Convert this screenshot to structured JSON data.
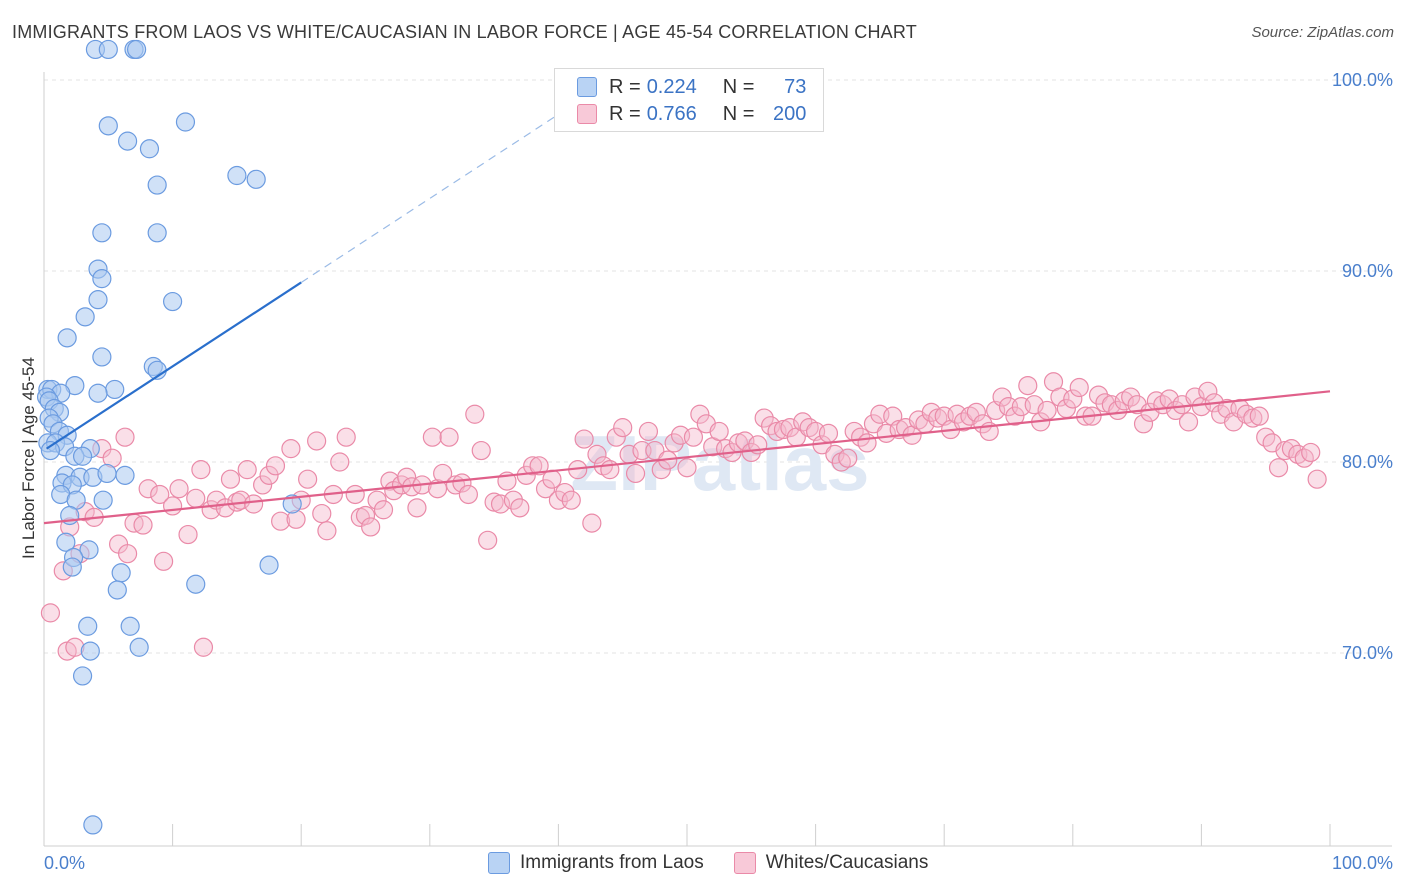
{
  "header": {
    "title": "IMMIGRANTS FROM LAOS VS WHITE/CAUCASIAN IN LABOR FORCE | AGE 45-54 CORRELATION CHART",
    "source": "Source: ZipAtlas.com"
  },
  "legend": {
    "series1": {
      "r_label": "R =",
      "r_value": "0.224",
      "n_label": "N =",
      "n_value": "73"
    },
    "series2": {
      "r_label": "R =",
      "r_value": "0.766",
      "n_label": "N =",
      "n_value": "200"
    }
  },
  "colors": {
    "blue_fill": "#a9c8f0",
    "blue_stroke": "#6b9be0",
    "blue_line": "#2a6fcc",
    "pink_fill": "#f5b8cb",
    "pink_stroke": "#ea8aa8",
    "pink_line": "#e0608a",
    "grid": "#e3e3e3",
    "tick_text": "#4a7fcc"
  },
  "chart_data": {
    "type": "scatter",
    "title": "IMMIGRANTS FROM LAOS VS WHITE/CAUCASIAN IN LABOR FORCE | AGE 45-54 CORRELATION CHART",
    "ylabel": "In Labor Force | Age 45-54",
    "xlim": [
      0,
      100
    ],
    "ylim": [
      60,
      102
    ],
    "x_tick_labels": [
      "0.0%",
      "100.0%"
    ],
    "y_ticks": [
      70,
      80,
      90,
      100
    ],
    "y_tick_labels": [
      "70.0%",
      "80.0%",
      "90.0%",
      "100.0%"
    ],
    "grid": true,
    "legend_position": "top-center",
    "watermark": "ZIPatlas",
    "series": [
      {
        "name": "Immigrants from Laos",
        "color": "#a9c8f0",
        "trend": {
          "x": [
            0.2,
            20
          ],
          "y": [
            80.7,
            89.4
          ],
          "dashed_extension_to": [
            40,
            98.2
          ]
        },
        "points": [
          [
            4,
            101.6
          ],
          [
            5,
            101.6
          ],
          [
            7,
            101.6
          ],
          [
            7.2,
            101.6
          ],
          [
            5,
            97.6
          ],
          [
            6.5,
            96.8
          ],
          [
            8.2,
            96.4
          ],
          [
            11,
            97.8
          ],
          [
            8.8,
            94.5
          ],
          [
            15,
            95.0
          ],
          [
            16.5,
            94.8
          ],
          [
            4.5,
            92.0
          ],
          [
            8.8,
            92.0
          ],
          [
            4.2,
            90.1
          ],
          [
            4.5,
            89.6
          ],
          [
            4.2,
            88.5
          ],
          [
            10,
            88.4
          ],
          [
            3.2,
            87.6
          ],
          [
            1.8,
            86.5
          ],
          [
            4.5,
            85.5
          ],
          [
            8.5,
            85.0
          ],
          [
            8.8,
            84.8
          ],
          [
            2.4,
            84.0
          ],
          [
            5.5,
            83.8
          ],
          [
            0.3,
            83.8
          ],
          [
            0.6,
            83.8
          ],
          [
            1.3,
            83.6
          ],
          [
            4.2,
            83.6
          ],
          [
            0.2,
            83.4
          ],
          [
            0.4,
            83.2
          ],
          [
            0.8,
            82.8
          ],
          [
            1.2,
            82.6
          ],
          [
            0.4,
            82.3
          ],
          [
            0.7,
            82.0
          ],
          [
            1.2,
            81.6
          ],
          [
            1.8,
            81.4
          ],
          [
            0.3,
            81.0
          ],
          [
            0.9,
            81.0
          ],
          [
            1.6,
            80.8
          ],
          [
            0.5,
            80.6
          ],
          [
            3.6,
            80.7
          ],
          [
            2.4,
            80.3
          ],
          [
            3.0,
            80.3
          ],
          [
            1.7,
            79.3
          ],
          [
            2.8,
            79.2
          ],
          [
            3.8,
            79.2
          ],
          [
            4.9,
            79.4
          ],
          [
            6.3,
            79.3
          ],
          [
            1.4,
            78.9
          ],
          [
            2.2,
            78.8
          ],
          [
            1.3,
            78.3
          ],
          [
            4.6,
            78.0
          ],
          [
            2.5,
            78.0
          ],
          [
            19.3,
            77.8
          ],
          [
            2.0,
            77.2
          ],
          [
            1.7,
            75.8
          ],
          [
            3.5,
            75.4
          ],
          [
            2.3,
            75.0
          ],
          [
            2.2,
            74.5
          ],
          [
            17.5,
            74.6
          ],
          [
            6.0,
            74.2
          ],
          [
            11.8,
            73.6
          ],
          [
            5.7,
            73.3
          ],
          [
            3.4,
            71.4
          ],
          [
            6.7,
            71.4
          ],
          [
            7.4,
            70.3
          ],
          [
            3.6,
            70.1
          ],
          [
            3.0,
            68.8
          ],
          [
            3.8,
            61.0
          ]
        ]
      },
      {
        "name": "Whites/Caucasians",
        "color": "#f5b8cb",
        "trend": {
          "x": [
            0,
            100
          ],
          "y": [
            76.8,
            83.7
          ]
        },
        "points": [
          [
            0.5,
            72.1
          ],
          [
            1.5,
            74.3
          ],
          [
            1.8,
            70.1
          ],
          [
            2.4,
            70.3
          ],
          [
            2.0,
            76.6
          ],
          [
            2.8,
            75.2
          ],
          [
            3.2,
            77.4
          ],
          [
            3.9,
            77.1
          ],
          [
            4.5,
            80.7
          ],
          [
            5.3,
            80.2
          ],
          [
            5.8,
            75.7
          ],
          [
            6.5,
            75.2
          ],
          [
            6.3,
            81.3
          ],
          [
            7.0,
            76.8
          ],
          [
            7.7,
            76.7
          ],
          [
            8.1,
            78.6
          ],
          [
            9.0,
            78.3
          ],
          [
            9.3,
            74.8
          ],
          [
            10.0,
            77.7
          ],
          [
            10.5,
            78.6
          ],
          [
            11.2,
            76.2
          ],
          [
            11.8,
            78.1
          ],
          [
            12.2,
            79.6
          ],
          [
            12.4,
            70.3
          ],
          [
            13.0,
            77.5
          ],
          [
            13.4,
            78.0
          ],
          [
            14.1,
            77.6
          ],
          [
            14.5,
            79.1
          ],
          [
            15.0,
            77.9
          ],
          [
            15.3,
            78.0
          ],
          [
            15.8,
            79.6
          ],
          [
            16.3,
            77.8
          ],
          [
            17.0,
            78.8
          ],
          [
            17.5,
            79.3
          ],
          [
            18.0,
            79.8
          ],
          [
            18.4,
            76.9
          ],
          [
            19.2,
            80.7
          ],
          [
            19.6,
            77.0
          ],
          [
            20.0,
            78.0
          ],
          [
            20.5,
            79.1
          ],
          [
            21.2,
            81.1
          ],
          [
            21.6,
            77.3
          ],
          [
            22.0,
            76.4
          ],
          [
            22.5,
            78.3
          ],
          [
            23.0,
            80.0
          ],
          [
            23.5,
            81.3
          ],
          [
            24.2,
            78.3
          ],
          [
            24.6,
            77.1
          ],
          [
            25.0,
            77.2
          ],
          [
            25.4,
            76.6
          ],
          [
            25.9,
            78.0
          ],
          [
            26.4,
            77.5
          ],
          [
            26.9,
            79.0
          ],
          [
            27.2,
            78.5
          ],
          [
            27.8,
            78.8
          ],
          [
            28.2,
            79.2
          ],
          [
            28.6,
            78.7
          ],
          [
            29.0,
            77.6
          ],
          [
            29.4,
            78.8
          ],
          [
            30.2,
            81.3
          ],
          [
            30.6,
            78.6
          ],
          [
            31.0,
            79.4
          ],
          [
            31.5,
            81.3
          ],
          [
            32.0,
            78.8
          ],
          [
            32.5,
            78.9
          ],
          [
            33.0,
            78.3
          ],
          [
            33.5,
            82.5
          ],
          [
            34.0,
            80.6
          ],
          [
            34.5,
            75.9
          ],
          [
            35.0,
            77.9
          ],
          [
            35.5,
            77.8
          ],
          [
            36.0,
            79.0
          ],
          [
            36.5,
            78.0
          ],
          [
            37.0,
            77.6
          ],
          [
            37.5,
            79.3
          ],
          [
            38.0,
            79.8
          ],
          [
            38.5,
            79.8
          ],
          [
            39.0,
            78.6
          ],
          [
            39.5,
            79.1
          ],
          [
            40.0,
            78.0
          ],
          [
            40.5,
            78.4
          ],
          [
            41.0,
            78.0
          ],
          [
            41.5,
            79.6
          ],
          [
            42.0,
            81.2
          ],
          [
            42.6,
            76.8
          ],
          [
            43.0,
            80.4
          ],
          [
            43.5,
            79.8
          ],
          [
            44.0,
            79.6
          ],
          [
            44.5,
            81.3
          ],
          [
            45.0,
            81.8
          ],
          [
            45.5,
            80.4
          ],
          [
            46.0,
            79.4
          ],
          [
            46.5,
            80.6
          ],
          [
            47.0,
            81.6
          ],
          [
            47.5,
            80.6
          ],
          [
            48.0,
            79.6
          ],
          [
            48.5,
            80.1
          ],
          [
            49.0,
            81.0
          ],
          [
            49.5,
            81.4
          ],
          [
            50.0,
            79.7
          ],
          [
            50.5,
            81.3
          ],
          [
            51.0,
            82.5
          ],
          [
            51.5,
            82.0
          ],
          [
            52.0,
            80.8
          ],
          [
            52.5,
            81.6
          ],
          [
            53.0,
            80.7
          ],
          [
            53.5,
            80.5
          ],
          [
            54.0,
            81.0
          ],
          [
            54.5,
            81.1
          ],
          [
            55.0,
            80.5
          ],
          [
            55.5,
            80.9
          ],
          [
            56.0,
            82.3
          ],
          [
            56.5,
            81.9
          ],
          [
            57.0,
            81.6
          ],
          [
            57.5,
            81.7
          ],
          [
            58.0,
            81.8
          ],
          [
            58.5,
            81.3
          ],
          [
            59.0,
            82.1
          ],
          [
            59.5,
            81.8
          ],
          [
            60.0,
            81.6
          ],
          [
            60.5,
            80.9
          ],
          [
            61.0,
            81.5
          ],
          [
            61.5,
            80.4
          ],
          [
            62.0,
            80.0
          ],
          [
            62.5,
            80.2
          ],
          [
            63.0,
            81.6
          ],
          [
            63.5,
            81.3
          ],
          [
            64.0,
            81.0
          ],
          [
            64.5,
            82.0
          ],
          [
            65.0,
            82.5
          ],
          [
            65.5,
            81.5
          ],
          [
            66.0,
            82.4
          ],
          [
            66.5,
            81.7
          ],
          [
            67.0,
            81.8
          ],
          [
            67.5,
            81.4
          ],
          [
            68.0,
            82.2
          ],
          [
            68.5,
            82.0
          ],
          [
            69.0,
            82.6
          ],
          [
            69.5,
            82.3
          ],
          [
            70.0,
            82.4
          ],
          [
            70.5,
            81.7
          ],
          [
            71.0,
            82.5
          ],
          [
            71.5,
            82.1
          ],
          [
            72.0,
            82.4
          ],
          [
            72.5,
            82.6
          ],
          [
            73.0,
            82.0
          ],
          [
            73.5,
            81.6
          ],
          [
            74.0,
            82.7
          ],
          [
            74.5,
            83.4
          ],
          [
            75.0,
            82.9
          ],
          [
            75.5,
            82.4
          ],
          [
            76.0,
            82.9
          ],
          [
            76.5,
            84.0
          ],
          [
            77.0,
            83.0
          ],
          [
            77.5,
            82.1
          ],
          [
            78.0,
            82.7
          ],
          [
            78.5,
            84.2
          ],
          [
            79.0,
            83.4
          ],
          [
            79.5,
            82.8
          ],
          [
            80.0,
            83.3
          ],
          [
            80.5,
            83.9
          ],
          [
            81.0,
            82.4
          ],
          [
            81.5,
            82.4
          ],
          [
            82.0,
            83.5
          ],
          [
            82.5,
            83.1
          ],
          [
            83.0,
            83.0
          ],
          [
            83.5,
            82.7
          ],
          [
            84.0,
            83.2
          ],
          [
            84.5,
            83.4
          ],
          [
            85.0,
            83.0
          ],
          [
            85.5,
            82.0
          ],
          [
            86.0,
            82.6
          ],
          [
            86.5,
            83.2
          ],
          [
            87.0,
            83.0
          ],
          [
            87.5,
            83.3
          ],
          [
            88.0,
            82.7
          ],
          [
            88.5,
            83.0
          ],
          [
            89.0,
            82.1
          ],
          [
            89.5,
            83.4
          ],
          [
            90.0,
            82.9
          ],
          [
            90.5,
            83.7
          ],
          [
            91.0,
            83.1
          ],
          [
            91.5,
            82.5
          ],
          [
            92.0,
            82.8
          ],
          [
            92.5,
            82.1
          ],
          [
            93.0,
            82.8
          ],
          [
            93.5,
            82.5
          ],
          [
            94.0,
            82.3
          ],
          [
            94.5,
            82.4
          ],
          [
            95.0,
            81.3
          ],
          [
            95.5,
            81.0
          ],
          [
            96.0,
            79.7
          ],
          [
            96.5,
            80.6
          ],
          [
            97.0,
            80.7
          ],
          [
            97.5,
            80.4
          ],
          [
            98.0,
            80.2
          ],
          [
            98.5,
            80.5
          ],
          [
            99.0,
            79.1
          ]
        ]
      }
    ]
  },
  "bottom_legend": {
    "item1": "Immigrants from Laos",
    "item2": "Whites/Caucasians"
  }
}
